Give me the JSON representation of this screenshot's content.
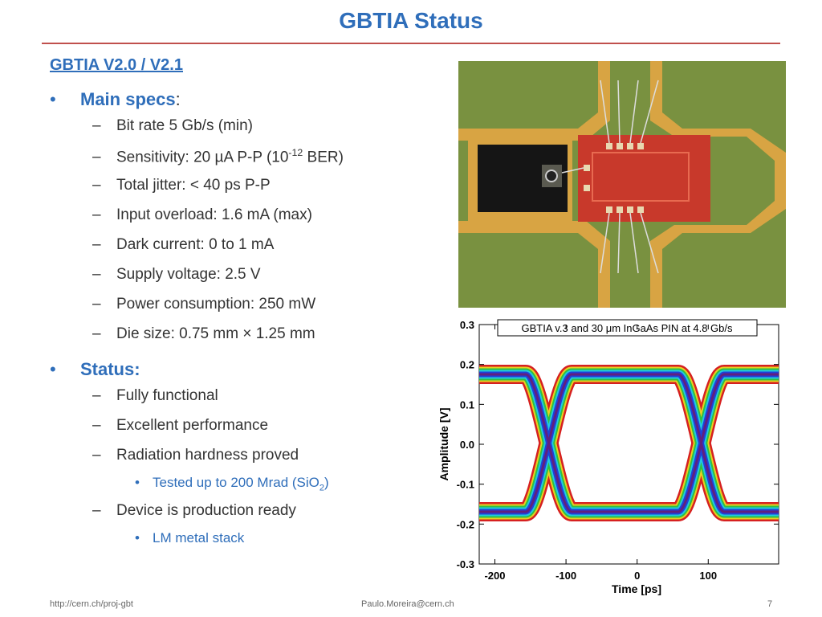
{
  "header": {
    "title": "GBTIA Status"
  },
  "body": {
    "heading": "GBTIA V2.0 / V2.1",
    "sections": [
      {
        "label": "Main specs",
        "colon": ":",
        "items": [
          {
            "text": "Bit rate 5 Gb/s (min)"
          },
          {
            "text": "Sensitivity: 20 µA P-P (10",
            "sup": "-12",
            "after": " BER)"
          },
          {
            "text": "Total jitter: < 40 ps P-P"
          },
          {
            "text": "Input overload: 1.6 mA (max)"
          },
          {
            "text": "Dark current: 0 to 1 mA"
          },
          {
            "text": "Supply voltage: 2.5 V"
          },
          {
            "text": "Power consumption: 250 mW"
          },
          {
            "text": "Die size: 0.75 mm × 1.25 mm"
          }
        ]
      },
      {
        "label": "Status:",
        "items": [
          {
            "text": "Fully functional"
          },
          {
            "text": "Excellent performance"
          },
          {
            "text": "Radiation hardness proved",
            "subitems": [
              {
                "text": "Tested up to 200 Mrad (SiO",
                "sub": "2",
                "after": ")"
              }
            ]
          },
          {
            "text": "Device is production ready",
            "subitems": [
              {
                "text": "LM metal stack"
              }
            ]
          }
        ]
      }
    ]
  },
  "eye_diagram": {
    "title": "GBTIA v.3 and 30 μm InGaAs PIN at 4.8 Gb/s",
    "xlabel": "Time [ps]",
    "ylabel": "Amplitude [V]",
    "xlim": [
      -222,
      199
    ],
    "ylim": [
      -0.3,
      0.3
    ],
    "xticks": [
      -200,
      -100,
      0,
      100
    ],
    "yticks": [
      0.3,
      0.2,
      0.1,
      {
        "value": 0,
        "label": "0.0"
      },
      -0.1,
      -0.2,
      -0.3
    ]
  },
  "footer": {
    "left": "http://cern.ch/proj-gbt",
    "center": "Paulo.Moreira@cern.ch",
    "page": "7"
  }
}
